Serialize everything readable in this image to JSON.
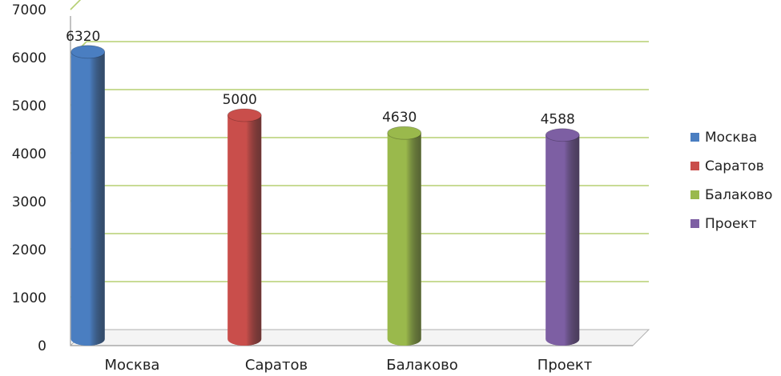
{
  "chart_data": {
    "type": "bar",
    "title": "",
    "xlabel": "",
    "ylabel": "",
    "categories": [
      "Москва",
      "Саратов",
      "Балаково",
      "Проект"
    ],
    "values": [
      6320,
      5000,
      4630,
      4588
    ],
    "data_labels": [
      "6320",
      "5000",
      "4630",
      "4588"
    ],
    "ylim": [
      0,
      7000
    ],
    "yticks": [
      0,
      1000,
      2000,
      3000,
      4000,
      5000,
      6000,
      7000
    ],
    "ytick_labels": [
      "0",
      "1000",
      "2000",
      "3000",
      "4000",
      "5000",
      "6000",
      "7000"
    ],
    "grid": true,
    "grid_color": "#b5cf72",
    "legend_position": "right",
    "legend": [
      {
        "name": "Москва",
        "color": "#4a7ec1"
      },
      {
        "name": "Саратов",
        "color": "#c94e4b"
      },
      {
        "name": "Балаково",
        "color": "#9ab94c"
      },
      {
        "name": "Проект",
        "color": "#7d5fa3"
      }
    ],
    "colors": [
      "#4a7ec1",
      "#c94e4b",
      "#9ab94c",
      "#7d5fa3"
    ],
    "style": "3d-cylinder"
  }
}
